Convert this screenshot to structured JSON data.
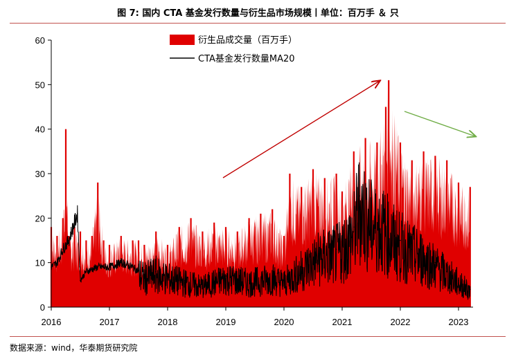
{
  "header": {
    "title": "图 7: 国内 CTA 基金发行数量与衍生品市场规模丨单位：百万手 ＆ 只"
  },
  "footer": {
    "source": "数据来源：wind，华泰期货研究院"
  },
  "chart_data": {
    "type": "bar+line",
    "title": "",
    "xlabel": "",
    "ylabel": "",
    "ylim": [
      0,
      60
    ],
    "xlim": [
      2016,
      2023.25
    ],
    "y_ticks": [
      "0",
      "10",
      "20",
      "30",
      "40",
      "50",
      "60"
    ],
    "x_ticks": [
      "2016",
      "2017",
      "2018",
      "2019",
      "2020",
      "2021",
      "2022",
      "2023"
    ],
    "legend_position": "top-center",
    "grid": false,
    "colors": {
      "bars": "#e00000",
      "line": "#000000",
      "arrow_up": "#c00000",
      "arrow_down": "#70ad47"
    },
    "series": [
      {
        "name": "衍生品成交量（百万手）",
        "type": "bar",
        "x": [
          2016.0,
          2016.1,
          2016.2,
          2016.25,
          2016.3,
          2016.4,
          2016.5,
          2016.6,
          2016.7,
          2016.8,
          2016.9,
          2017.0,
          2017.2,
          2017.4,
          2017.5,
          2017.6,
          2017.8,
          2018.0,
          2018.2,
          2018.4,
          2018.6,
          2018.8,
          2019.0,
          2019.2,
          2019.4,
          2019.6,
          2019.8,
          2020.0,
          2020.1,
          2020.3,
          2020.5,
          2020.7,
          2020.9,
          2021.0,
          2021.2,
          2021.4,
          2021.6,
          2021.75,
          2021.8,
          2022.0,
          2022.2,
          2022.4,
          2022.6,
          2022.8,
          2023.0,
          2023.2
        ],
        "values": [
          18,
          16,
          20,
          40,
          16,
          18,
          17,
          15,
          16,
          28,
          15,
          14,
          16,
          15,
          15,
          14,
          17,
          14,
          18,
          20,
          17,
          19,
          18,
          17,
          20,
          21,
          22,
          16,
          30,
          27,
          31,
          29,
          30,
          26,
          35,
          38,
          37,
          45,
          51,
          37,
          33,
          35,
          34,
          33,
          28,
          27
        ]
      },
      {
        "name": "CTA基金发行数量MA20",
        "type": "line",
        "x": [
          2016.0,
          2016.1,
          2016.2,
          2016.3,
          2016.45,
          2016.5,
          2016.6,
          2016.8,
          2017.0,
          2017.2,
          2017.4,
          2017.6,
          2017.8,
          2018.0,
          2018.3,
          2018.6,
          2019.0,
          2019.4,
          2019.8,
          2020.0,
          2020.3,
          2020.6,
          2020.9,
          2021.0,
          2021.2,
          2021.3,
          2021.5,
          2021.7,
          2021.9,
          2022.0,
          2022.2,
          2022.4,
          2022.6,
          2022.8,
          2023.0,
          2023.2
        ],
        "values": [
          9,
          10,
          13,
          15,
          21,
          6,
          8,
          9,
          9,
          10,
          9,
          7,
          8,
          7,
          6,
          5,
          7,
          6,
          7,
          6,
          9,
          12,
          13,
          14,
          18,
          25,
          20,
          19,
          16,
          15,
          13,
          12,
          10,
          8,
          6,
          4
        ]
      }
    ]
  }
}
